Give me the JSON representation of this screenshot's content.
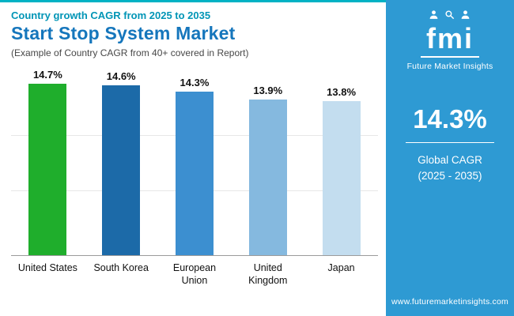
{
  "header": {
    "eyebrow": "Country growth CAGR from 2025 to 2035",
    "title": "Start Stop System Market",
    "subtitle": "(Example of Country CAGR from 40+ covered in Report)"
  },
  "chart_data": {
    "type": "bar",
    "title": "Start Stop System Market - Country growth CAGR from 2025 to 2035",
    "categories": [
      "United States",
      "South Korea",
      "European Union",
      "United Kingdom",
      "Japan"
    ],
    "values": [
      14.7,
      14.6,
      14.3,
      13.9,
      13.8
    ],
    "value_labels": [
      "14.7%",
      "14.6%",
      "14.3%",
      "13.9%",
      "13.8%"
    ],
    "bar_colors": [
      "#1fae2c",
      "#1c6aa8",
      "#3c8fd0",
      "#85b9df",
      "#c3ddef"
    ],
    "xlabel": "",
    "ylabel": "",
    "ylim": [
      6,
      15.6
    ],
    "grid": true,
    "legend": false
  },
  "sidebar": {
    "bg_color": "#2e9ad3",
    "logo_text": "fmi",
    "logo_icons": [
      "person-icon",
      "magnifier-icon",
      "person-icon"
    ],
    "logo_caption": "Future Market Insights",
    "stat_value": "14.3%",
    "stat_label_line1": "Global CAGR",
    "stat_label_line2": "(2025 - 2035)",
    "website": "www.futuremarketinsights.com"
  },
  "accent_colors": {
    "top_strip": "#00b2c4",
    "eyebrow_text": "#0095b6",
    "title_text": "#1576bc"
  }
}
